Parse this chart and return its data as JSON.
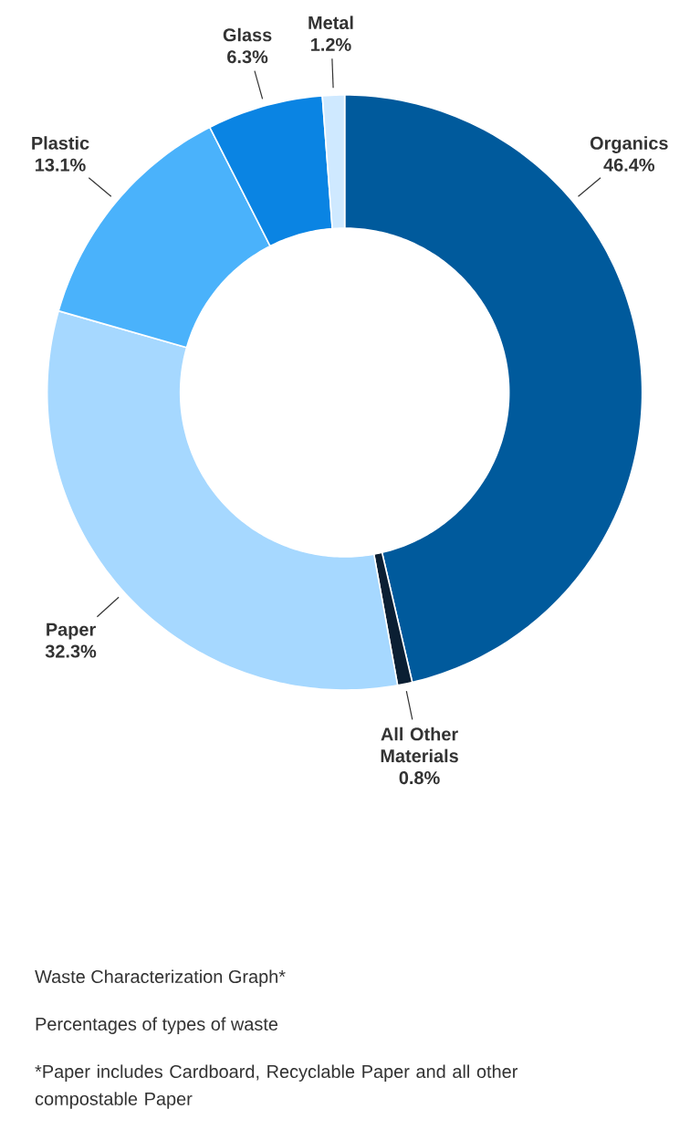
{
  "chart_data": {
    "type": "donut",
    "title": "Waste Characterization Graph*",
    "subtitle": "Percentages of types of waste",
    "categories": [
      "Organics",
      "All Other Materials",
      "Paper",
      "Plastic",
      "Glass",
      "Metal"
    ],
    "values": [
      46.4,
      0.8,
      32.3,
      13.1,
      6.3,
      1.2
    ],
    "value_labels": [
      "46.4%",
      "0.8%",
      "32.3%",
      "13.1%",
      "6.3%",
      "1.2%"
    ],
    "colors": [
      "#005a9c",
      "#0b1f33",
      "#a6d8ff",
      "#4ab2fb",
      "#0a84e3",
      "#cfe9ff"
    ],
    "annotations": [
      "*Paper includes Cardboard, Recyclable Paper and all other compostable Paper"
    ]
  }
}
